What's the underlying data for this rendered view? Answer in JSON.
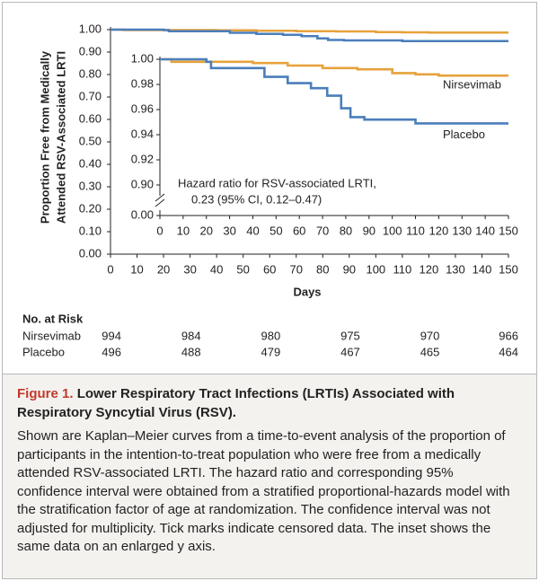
{
  "chart_data": [
    {
      "type": "step",
      "y_label": [
        "Proportion Free from Medically",
        "Attended RSV-Associated LRTI"
      ],
      "x_label": "Days",
      "xlim": [
        0,
        150
      ],
      "ylim": [
        0,
        1.0
      ],
      "xticks": [
        0,
        10,
        20,
        30,
        40,
        50,
        60,
        70,
        80,
        90,
        100,
        110,
        120,
        130,
        140,
        150
      ],
      "yticks": [
        {
          "value": 0,
          "label": "0.00"
        },
        {
          "value": 0.1,
          "label": "0.10"
        },
        {
          "value": 0.2,
          "label": "0.20"
        },
        {
          "value": 0.3,
          "label": "0.30"
        },
        {
          "value": 0.4,
          "label": "0.40"
        },
        {
          "value": 0.5,
          "label": "0.50"
        },
        {
          "value": 0.6,
          "label": "0.60"
        },
        {
          "value": 0.7,
          "label": "0.70"
        },
        {
          "value": 0.8,
          "label": "0.80"
        },
        {
          "value": 0.9,
          "label": "0.90"
        },
        {
          "value": 1.0,
          "label": "1.00"
        }
      ],
      "x": [
        0,
        5,
        20,
        22,
        40,
        45,
        55,
        65,
        70,
        72,
        78,
        82,
        85,
        88,
        100,
        110,
        120,
        150
      ],
      "series": [
        {
          "color": "#e6a23c",
          "values": [
            1.0,
            0.998,
            0.998,
            0.998,
            0.997,
            0.997,
            0.995,
            0.995,
            0.993,
            0.993,
            0.993,
            0.993,
            0.992,
            0.992,
            0.989,
            0.988,
            0.987,
            0.987
          ]
        },
        {
          "color": "#4a7ebb",
          "values": [
            1.0,
            1.0,
            0.998,
            0.993,
            0.993,
            0.986,
            0.981,
            0.977,
            0.977,
            0.971,
            0.961,
            0.954,
            0.954,
            0.952,
            0.952,
            0.949,
            0.949,
            0.949
          ]
        }
      ]
    },
    {
      "type": "step",
      "axis_break": true,
      "xlim": [
        0,
        150
      ],
      "ylim": [
        0.9,
        1.0
      ],
      "xticks": [
        0,
        10,
        20,
        30,
        40,
        50,
        60,
        70,
        80,
        90,
        100,
        110,
        120,
        130,
        140,
        150
      ],
      "yticks": [
        {
          "value": 1.0,
          "label": "1.00"
        },
        {
          "value": 0.98,
          "label": "0.98"
        },
        {
          "value": 0.96,
          "label": "0.96"
        },
        {
          "value": 0.94,
          "label": "0.94"
        },
        {
          "value": 0.92,
          "label": "0.92"
        },
        {
          "value": 0.9,
          "label": "0.90"
        },
        {
          "value": 0,
          "label": "0.00"
        }
      ],
      "annotation": [
        "Hazard ratio for RSV-associated LRTI,",
        "0.23 (95% CI, 0.12–0.47)"
      ],
      "x": [
        0,
        5,
        20,
        22,
        40,
        45,
        55,
        65,
        70,
        72,
        78,
        82,
        85,
        88,
        100,
        110,
        120,
        150
      ],
      "series": [
        {
          "name": "Nirsevimab",
          "color": "#e6a23c",
          "values": [
            1.0,
            0.998,
            0.998,
            0.998,
            0.997,
            0.997,
            0.995,
            0.995,
            0.993,
            0.993,
            0.993,
            0.993,
            0.992,
            0.992,
            0.989,
            0.988,
            0.987,
            0.987
          ]
        },
        {
          "name": "Placebo",
          "color": "#4a7ebb",
          "values": [
            1.0,
            1.0,
            0.998,
            0.993,
            0.993,
            0.986,
            0.981,
            0.977,
            0.977,
            0.971,
            0.961,
            0.954,
            0.954,
            0.952,
            0.952,
            0.949,
            0.949,
            0.949
          ]
        }
      ]
    }
  ],
  "risk_table": {
    "title": "No. at Risk",
    "rows": [
      {
        "name": "Nirsevimab",
        "values": [
          "994",
          "984",
          "980",
          "975",
          "970",
          "966"
        ]
      },
      {
        "name": "Placebo",
        "values": [
          "496",
          "488",
          "479",
          "467",
          "465",
          "464"
        ]
      }
    ]
  },
  "caption": {
    "label": "Figure 1.",
    "title": "Lower Respiratory Tract Infections (LRTIs) Associated with Respiratory Syncytial Virus (RSV).",
    "body": "Shown are Kaplan–Meier curves from a time-to-event analysis of the proportion of participants in the intention-to-treat population who were free from a medically attended RSV-associated LRTI. The hazard ratio and corresponding 95% confidence interval were obtained from a stratified proportional-hazards model with the stratification factor of age at randomization. The confidence interval was not adjusted for multiplicity. Tick marks indicate censored data. The inset shows the same data on an enlarged y axis."
  }
}
